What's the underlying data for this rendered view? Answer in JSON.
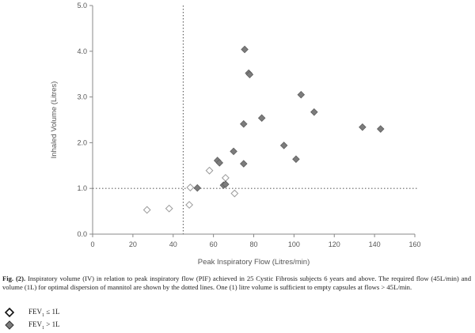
{
  "chart_data": {
    "type": "scatter",
    "xlabel": "Peak  Inspiratory Flow  (Litres/min)",
    "ylabel": "Inhaled Volume  (Litres)",
    "xlim": [
      0,
      160
    ],
    "ylim": [
      0,
      5
    ],
    "xticks": [
      "0",
      "20",
      "40",
      "60",
      "80",
      "100",
      "120",
      "140",
      "160"
    ],
    "yticks": [
      "0.0",
      "1.0",
      "2.0",
      "3.0",
      "4.0",
      "5.0"
    ],
    "grid": false,
    "reference_lines": [
      {
        "orientation": "vertical",
        "x": 45,
        "style": "dotted"
      },
      {
        "orientation": "horizontal",
        "y": 1.0,
        "style": "dotted"
      }
    ],
    "series": [
      {
        "name": "FEV1 ≤ 1L",
        "marker": "diamond-open",
        "color": "#9a9a9a",
        "points": [
          {
            "x": 27,
            "y": 0.53
          },
          {
            "x": 38,
            "y": 0.56
          },
          {
            "x": 48,
            "y": 0.64
          },
          {
            "x": 48.5,
            "y": 1.02
          },
          {
            "x": 58,
            "y": 1.39
          },
          {
            "x": 66,
            "y": 1.23
          },
          {
            "x": 70.5,
            "y": 0.89
          }
        ]
      },
      {
        "name": "FEV1 > 1L",
        "marker": "diamond-filled",
        "color": "#7c7c7c",
        "points": [
          {
            "x": 52,
            "y": 1.01
          },
          {
            "x": 62,
            "y": 1.61
          },
          {
            "x": 63,
            "y": 1.56
          },
          {
            "x": 65,
            "y": 1.07
          },
          {
            "x": 66,
            "y": 1.09
          },
          {
            "x": 70,
            "y": 1.81
          },
          {
            "x": 75,
            "y": 1.54
          },
          {
            "x": 75,
            "y": 2.41
          },
          {
            "x": 75.5,
            "y": 4.04
          },
          {
            "x": 77.5,
            "y": 3.52
          },
          {
            "x": 78,
            "y": 3.49
          },
          {
            "x": 84,
            "y": 2.54
          },
          {
            "x": 95,
            "y": 1.94
          },
          {
            "x": 101,
            "y": 1.64
          },
          {
            "x": 103.5,
            "y": 3.05
          },
          {
            "x": 110,
            "y": 2.67
          },
          {
            "x": 134,
            "y": 2.34
          },
          {
            "x": 143,
            "y": 2.3
          }
        ]
      }
    ]
  },
  "caption": {
    "label": "Fig. (2).",
    "text": "Inspiratory volume (IV) in relation to peak inspiratory flow (PIF) achieved in 25 Cystic Fibrosis subjects 6 years and above. The required flow (45L/min) and volume (1L) for optimal dispersion of mannitol are shown by the dotted lines. One (1) litre volume is sufficient to empty capsules at flows > 45L/min."
  },
  "legend": {
    "items": [
      {
        "prefix": "FEV",
        "sub": "1",
        "suffix": " ≤ 1L",
        "marker": "diamond-open"
      },
      {
        "prefix": "FEV",
        "sub": "1",
        "suffix": " > 1L",
        "marker": "diamond-filled"
      }
    ]
  }
}
